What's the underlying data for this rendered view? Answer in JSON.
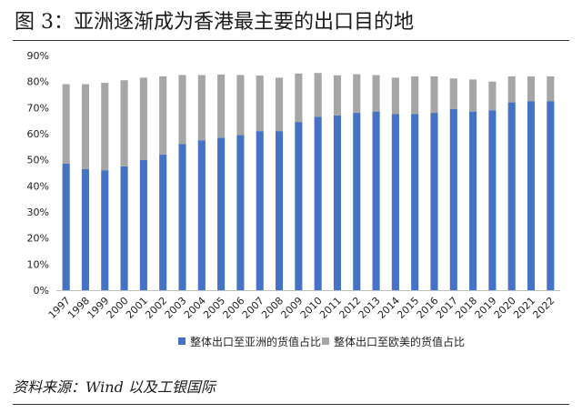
{
  "title": "图 3：亚洲逐渐成为香港最主要的出口目的地",
  "source": "资料来源：Wind 以及工银国际",
  "colors": {
    "asia": "#4472C4",
    "euus": "#A6A6A6"
  },
  "chart_data": {
    "type": "bar",
    "stacked": true,
    "categories": [
      "1997",
      "1998",
      "1999",
      "2000",
      "2001",
      "2002",
      "2003",
      "2004",
      "2005",
      "2006",
      "2007",
      "2008",
      "2009",
      "2010",
      "2011",
      "2012",
      "2013",
      "2014",
      "2015",
      "2016",
      "2017",
      "2018",
      "2019",
      "2020",
      "2021",
      "2022"
    ],
    "series": [
      {
        "name": "整体出口至亚洲的货值占比",
        "values": [
          48.5,
          46.5,
          46,
          47.5,
          50,
          52,
          56,
          57.5,
          58.5,
          59.5,
          61,
          61,
          64.5,
          66.5,
          67,
          68,
          68.5,
          67.5,
          67.5,
          68,
          69.5,
          68.5,
          69,
          72,
          72.5,
          72.5
        ]
      },
      {
        "name": "整体出口至欧美的货值占比",
        "values": [
          30.5,
          32.5,
          33.5,
          33,
          31.5,
          30,
          26.5,
          25,
          24.2,
          23,
          21.3,
          20.5,
          18.6,
          16.8,
          15.4,
          14.8,
          14,
          14,
          14.5,
          14,
          11.7,
          12.3,
          11,
          10,
          9.5,
          9.5
        ]
      }
    ],
    "ylim": [
      0,
      90
    ],
    "yticks": [
      "0%",
      "10%",
      "20%",
      "30%",
      "40%",
      "50%",
      "60%",
      "70%",
      "80%",
      "90%"
    ],
    "grid": false,
    "legend_position": "bottom"
  }
}
